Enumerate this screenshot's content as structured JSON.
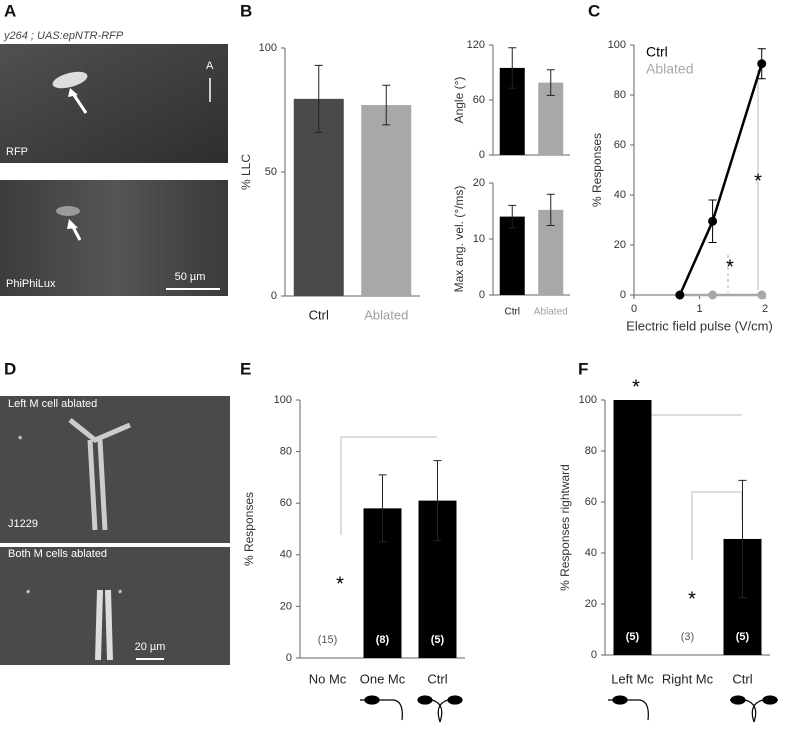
{
  "figure": {
    "panels": [
      "A",
      "B",
      "C",
      "D",
      "E",
      "F"
    ],
    "a_genotype": "y264 ; UAS:epNTR-RFP",
    "a_orientation": "A",
    "a_top_label": "RFP",
    "a_bottom_label": "PhiPhiLux",
    "a_scale": "50 µm",
    "d_top_label": "Left M cell ablated",
    "d_line": "J1229",
    "d_bottom_label": "Both M cells ablated",
    "d_scale": "20 µm",
    "d_star": "*"
  },
  "chart_data": [
    {
      "type": "bar",
      "ylabel": "% LLC",
      "categories": [
        "Ctrl",
        "Ablated"
      ],
      "values": [
        79.5,
        77
      ],
      "errors": [
        13.5,
        8
      ],
      "colors": [
        "#4a4a4a",
        "#a8a8a8"
      ],
      "label_colors": [
        "#222222",
        "#a0a0a0"
      ],
      "ylim": [
        0,
        100
      ],
      "yticks": [
        0,
        50,
        100
      ]
    },
    {
      "type": "bar",
      "ylabel": "Angle (°)",
      "values": [
        95,
        79
      ],
      "errors": [
        22,
        14
      ],
      "colors": [
        "#000000",
        "#a8a8a8"
      ],
      "ylim": [
        0,
        120
      ],
      "yticks": [
        0,
        60,
        120
      ]
    },
    {
      "type": "bar",
      "ylabel": "Max ang. vel. (°/ms)",
      "categories": [
        "Ctrl",
        "Ablated"
      ],
      "values": [
        14,
        15.2
      ],
      "errors": [
        2,
        2.8
      ],
      "colors": [
        "#000000",
        "#a8a8a8"
      ],
      "label_colors": [
        "#222222",
        "#a0a0a0"
      ],
      "ylim": [
        0,
        20
      ],
      "yticks": [
        0,
        10,
        20
      ]
    },
    {
      "type": "line",
      "xlabel": "Electric field pulse (V/cm)",
      "ylabel": "% Responses",
      "x": [
        0.7,
        1.2,
        1.95
      ],
      "series": [
        {
          "name": "Ctrl",
          "color": "#000000",
          "values": [
            0,
            29.5,
            92.5
          ],
          "errors": [
            null,
            8.5,
            6
          ]
        },
        {
          "name": "Ablated",
          "color": "#a8a8a8",
          "values": [
            0,
            0,
            0
          ],
          "errors": [
            null,
            null,
            null
          ]
        }
      ],
      "annotations": [
        "*",
        "*"
      ],
      "xlim": [
        0,
        2
      ],
      "xticks": [
        0,
        1,
        2
      ],
      "ylim": [
        0,
        100
      ],
      "yticks": [
        0,
        20,
        40,
        60,
        80,
        100
      ]
    },
    {
      "type": "bar",
      "ylabel": "% Responses",
      "categories": [
        "No Mc",
        "One Mc",
        "Ctrl"
      ],
      "values": [
        0,
        58,
        61
      ],
      "errors": [
        null,
        13,
        15.5
      ],
      "n_labels": [
        "(15)",
        "(8)",
        "(5)"
      ],
      "colors": [
        "#000000",
        "#000000",
        "#000000"
      ],
      "annotations": [
        "*"
      ],
      "ylim": [
        0,
        100
      ],
      "yticks": [
        0,
        20,
        40,
        60,
        80,
        100
      ]
    },
    {
      "type": "bar",
      "ylabel": "% Responses rightward",
      "categories": [
        "Left Mc",
        "Right Mc",
        "Ctrl"
      ],
      "values": [
        100,
        0,
        45.5
      ],
      "errors": [
        null,
        null,
        23
      ],
      "n_labels": [
        "(5)",
        "(3)",
        "(5)"
      ],
      "colors": [
        "#000000",
        "#000000",
        "#000000"
      ],
      "annotations": [
        "*",
        "*"
      ],
      "ylim": [
        0,
        100
      ],
      "yticks": [
        0,
        20,
        40,
        60,
        80,
        100
      ]
    }
  ]
}
